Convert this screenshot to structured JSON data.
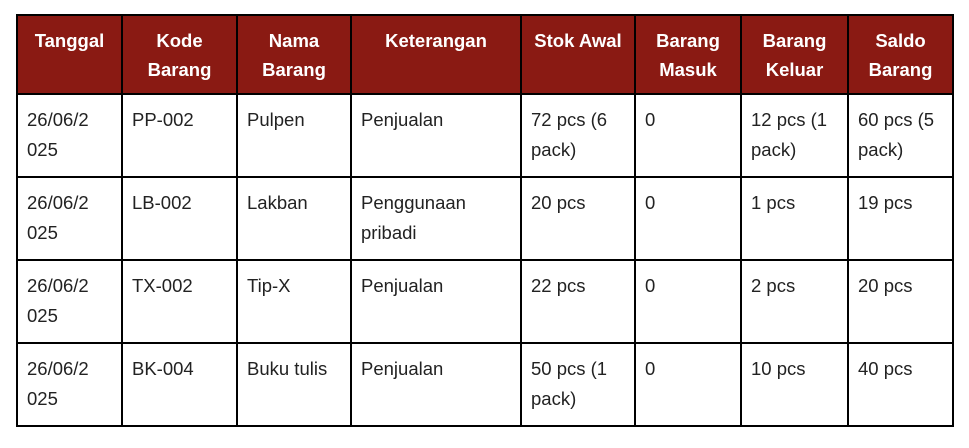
{
  "headers": [
    "Tanggal",
    "Kode Barang",
    "Nama Barang",
    "Keterangan",
    "Stok Awal",
    "Barang Masuk",
    "Barang Keluar",
    "Saldo Barang"
  ],
  "rows": [
    [
      "26/06/2 025",
      "PP-002",
      "Pulpen",
      "Penjualan",
      "72 pcs (6 pack)",
      "0",
      "12 pcs (1 pack)",
      "60 pcs (5 pack)"
    ],
    [
      "26/06/2 025",
      "LB-002",
      "Lakban",
      "Penggunaan pribadi",
      "20 pcs",
      "0",
      "1 pcs",
      "19 pcs"
    ],
    [
      "26/06/2 025",
      "TX-002",
      "Tip-X",
      "Penjualan",
      "22 pcs",
      "0",
      "2 pcs",
      "20 pcs"
    ],
    [
      "26/06/2 025",
      "BK-004",
      "Buku tulis",
      "Penjualan",
      "50 pcs (1 pack)",
      "0",
      "10 pcs",
      "40 pcs"
    ]
  ],
  "colors": {
    "header_bg": "#8a1a13",
    "header_text": "#ffffff"
  }
}
